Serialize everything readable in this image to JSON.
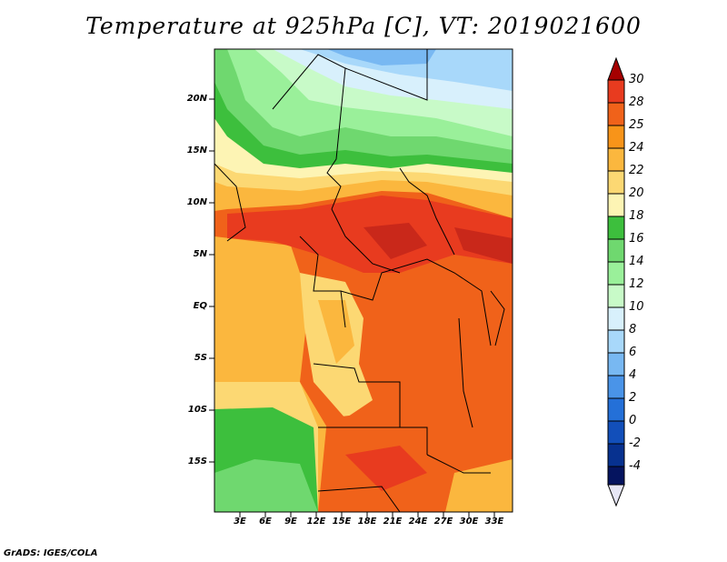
{
  "title": "Temperature at 925hPa [C], VT: 2019021600",
  "credit": "GrADS: IGES/COLA",
  "map": {
    "lat_labels": [
      "20N",
      "15N",
      "10N",
      "5N",
      "EQ",
      "5S",
      "10S",
      "15S"
    ],
    "lon_labels": [
      "3E",
      "6E",
      "9E",
      "12E",
      "15E",
      "18E",
      "21E",
      "24E",
      "27E",
      "30E",
      "33E"
    ]
  },
  "colorbar": {
    "labels": [
      "30",
      "28",
      "25",
      "24",
      "22",
      "20",
      "18",
      "16",
      "14",
      "12",
      "10",
      "8",
      "6",
      "4",
      "2",
      "0",
      "-2",
      "-4"
    ],
    "colors": [
      "#a50000",
      "#e83b1f",
      "#f0621a",
      "#f89419",
      "#fbb73e",
      "#fcd873",
      "#fdf4b4",
      "#3dbf3d",
      "#6fd86f",
      "#9af09a",
      "#c8fac8",
      "#d8f0fc",
      "#a8d8fa",
      "#78b8f2",
      "#4a94e8",
      "#2470d8",
      "#124fba",
      "#07318f",
      "#05145f",
      "#e6e6f5"
    ]
  }
}
